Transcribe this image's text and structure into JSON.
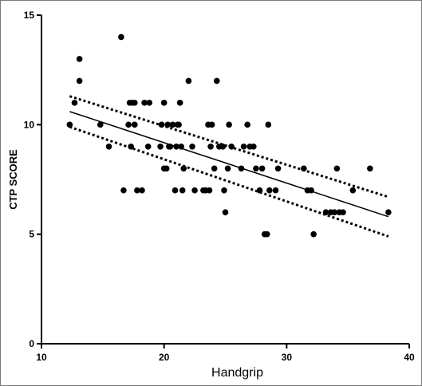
{
  "chart_data": {
    "type": "scatter",
    "title": "",
    "xlabel": "Handgrip",
    "ylabel": "CTP SCORE",
    "xlim": [
      10,
      40
    ],
    "ylim": [
      0,
      15
    ],
    "x_ticks": [
      "10",
      "20",
      "30",
      "40"
    ],
    "y_ticks": [
      "0",
      "5",
      "10",
      "15"
    ],
    "grid": false,
    "point_color": "#000000",
    "points": [
      [
        12.3,
        10
      ],
      [
        12.7,
        11
      ],
      [
        13.1,
        13
      ],
      [
        13.1,
        12
      ],
      [
        14.8,
        10
      ],
      [
        15.5,
        9
      ],
      [
        16.5,
        14
      ],
      [
        16.7,
        7
      ],
      [
        17.1,
        10
      ],
      [
        17.2,
        11
      ],
      [
        17.3,
        9
      ],
      [
        17.4,
        11
      ],
      [
        17.6,
        11
      ],
      [
        17.6,
        10
      ],
      [
        17.8,
        7
      ],
      [
        18.2,
        7
      ],
      [
        18.4,
        11
      ],
      [
        18.7,
        9
      ],
      [
        18.8,
        11
      ],
      [
        19.7,
        9
      ],
      [
        19.8,
        10
      ],
      [
        20.0,
        11
      ],
      [
        20.0,
        8
      ],
      [
        20.2,
        8
      ],
      [
        20.3,
        10
      ],
      [
        20.4,
        9
      ],
      [
        20.5,
        9
      ],
      [
        20.7,
        10
      ],
      [
        20.9,
        7
      ],
      [
        21.0,
        9
      ],
      [
        21.1,
        10
      ],
      [
        21.2,
        10
      ],
      [
        21.3,
        11
      ],
      [
        21.4,
        9
      ],
      [
        21.5,
        7
      ],
      [
        21.6,
        8
      ],
      [
        22.0,
        12
      ],
      [
        22.3,
        9
      ],
      [
        22.5,
        7
      ],
      [
        23.2,
        7
      ],
      [
        23.4,
        7
      ],
      [
        23.6,
        10
      ],
      [
        23.7,
        7
      ],
      [
        23.8,
        9
      ],
      [
        23.9,
        10
      ],
      [
        24.1,
        8
      ],
      [
        24.3,
        12
      ],
      [
        24.5,
        9
      ],
      [
        24.8,
        9
      ],
      [
        24.9,
        7
      ],
      [
        25.0,
        6
      ],
      [
        25.2,
        8
      ],
      [
        25.3,
        10
      ],
      [
        25.5,
        9
      ],
      [
        26.3,
        8
      ],
      [
        26.5,
        9
      ],
      [
        26.8,
        10
      ],
      [
        27.0,
        9
      ],
      [
        27.3,
        9
      ],
      [
        27.5,
        8
      ],
      [
        27.8,
        7
      ],
      [
        28.0,
        8
      ],
      [
        28.2,
        5
      ],
      [
        28.4,
        5
      ],
      [
        28.5,
        10
      ],
      [
        28.6,
        7
      ],
      [
        29.1,
        7
      ],
      [
        29.3,
        8
      ],
      [
        31.4,
        8
      ],
      [
        31.7,
        7
      ],
      [
        32.0,
        7
      ],
      [
        32.2,
        5
      ],
      [
        33.2,
        6
      ],
      [
        33.6,
        6
      ],
      [
        33.9,
        6
      ],
      [
        34.1,
        8
      ],
      [
        34.3,
        6
      ],
      [
        34.6,
        6
      ],
      [
        35.4,
        7
      ],
      [
        36.8,
        8
      ],
      [
        38.3,
        6
      ]
    ],
    "regression_line": {
      "x": [
        12.3,
        38.3
      ],
      "y": [
        10.6,
        5.8
      ],
      "style": "solid"
    },
    "confidence_band_upper": {
      "x": [
        12.3,
        38.3
      ],
      "y": [
        11.3,
        6.7
      ],
      "style": "dotted"
    },
    "confidence_band_lower": {
      "x": [
        12.3,
        38.3
      ],
      "y": [
        9.9,
        4.9
      ],
      "style": "dotted"
    }
  }
}
